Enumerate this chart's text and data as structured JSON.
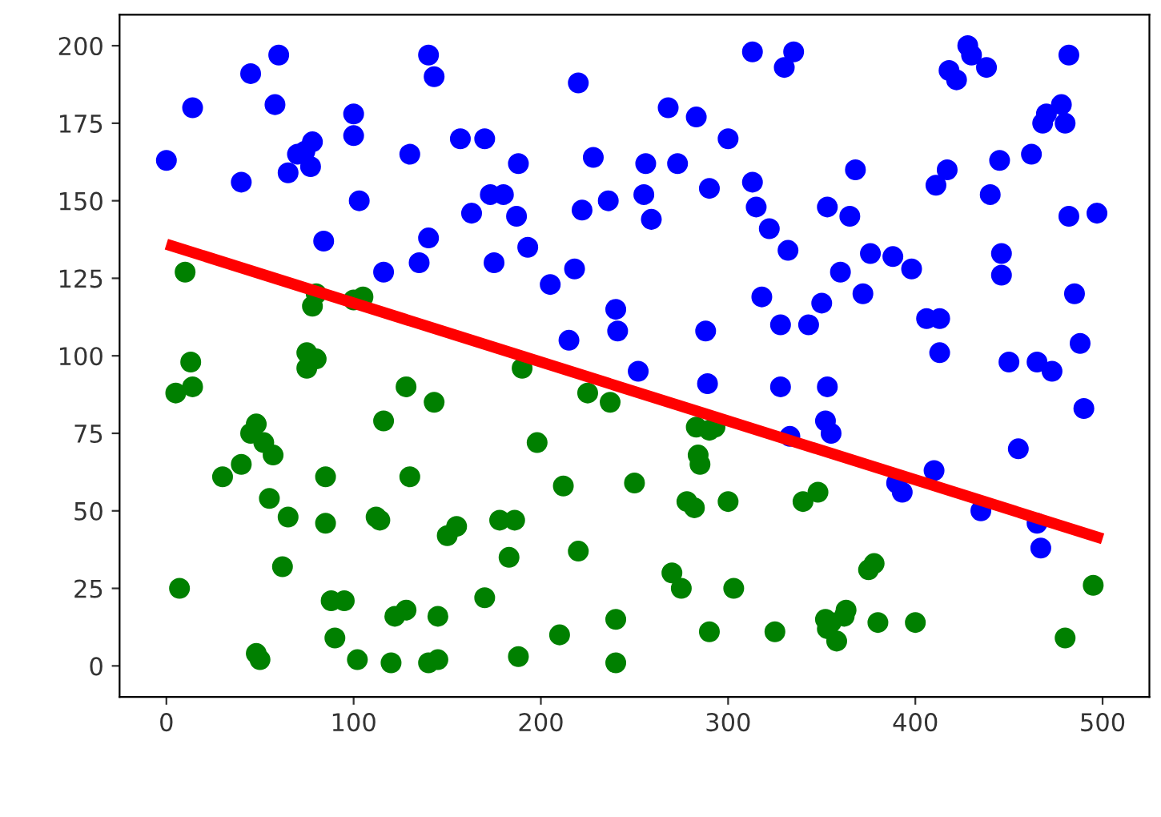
{
  "chart_data": {
    "type": "scatter",
    "xlim": [
      -25,
      525
    ],
    "ylim": [
      -10,
      210
    ],
    "xticks": [
      0,
      100,
      200,
      300,
      400,
      500
    ],
    "yticks": [
      0,
      25,
      50,
      75,
      100,
      125,
      150,
      175,
      200
    ],
    "grid": false,
    "marker": "circle",
    "series": [
      {
        "color": "#0000ff",
        "x": [
          0,
          14,
          40,
          45,
          58,
          60,
          65,
          70,
          74,
          77,
          78,
          84,
          100,
          100,
          103,
          116,
          130,
          135,
          140,
          140,
          143,
          157,
          163,
          170,
          173,
          175,
          180,
          187,
          188,
          193,
          205,
          215,
          218,
          220,
          222,
          228,
          236,
          240,
          241,
          252,
          255,
          256,
          259,
          268,
          273,
          283,
          288,
          289,
          290,
          300,
          313,
          313,
          315,
          318,
          322,
          328,
          328,
          330,
          332,
          333,
          335,
          343,
          350,
          352,
          353,
          353,
          355,
          360,
          365,
          368,
          372,
          376,
          388,
          390,
          393,
          398,
          406,
          410,
          411,
          413,
          413,
          417,
          418,
          422,
          428,
          430,
          435,
          438,
          440,
          445,
          446,
          446,
          450,
          455,
          462,
          465,
          465,
          467,
          468,
          470,
          473,
          478,
          480,
          482,
          482,
          485,
          488,
          490,
          497
        ],
        "values": [
          163,
          180,
          156,
          191,
          181,
          197,
          159,
          165,
          166,
          161,
          169,
          137,
          178,
          171,
          150,
          127,
          165,
          130,
          138,
          197,
          190,
          170,
          146,
          170,
          152,
          130,
          152,
          145,
          162,
          135,
          123,
          105,
          128,
          188,
          147,
          164,
          150,
          115,
          108,
          95,
          152,
          162,
          144,
          180,
          162,
          177,
          108,
          91,
          154,
          170,
          198,
          156,
          148,
          119,
          141,
          110,
          90,
          193,
          134,
          74,
          198,
          110,
          117,
          79,
          90,
          148,
          75,
          127,
          145,
          160,
          120,
          133,
          132,
          59,
          56,
          128,
          112,
          63,
          155,
          101,
          112,
          160,
          192,
          189,
          200,
          197,
          50,
          193,
          152,
          163,
          133,
          126,
          98,
          70,
          165,
          98,
          46,
          38,
          175,
          178,
          95,
          181,
          175,
          145,
          197,
          120,
          104,
          83,
          146
        ]
      },
      {
        "color": "#008000",
        "x": [
          5,
          7,
          10,
          13,
          14,
          30,
          40,
          45,
          48,
          48,
          50,
          52,
          55,
          57,
          62,
          65,
          75,
          75,
          78,
          80,
          80,
          85,
          85,
          88,
          90,
          95,
          100,
          102,
          105,
          112,
          114,
          116,
          120,
          122,
          128,
          128,
          130,
          140,
          143,
          145,
          145,
          150,
          155,
          170,
          178,
          183,
          186,
          188,
          190,
          198,
          210,
          212,
          220,
          225,
          237,
          240,
          240,
          250,
          270,
          275,
          278,
          282,
          283,
          284,
          285,
          290,
          290,
          293,
          300,
          303,
          325,
          340,
          348,
          352,
          353,
          355,
          358,
          362,
          363,
          375,
          378,
          380,
          400,
          480,
          495
        ],
        "values": [
          88,
          25,
          127,
          98,
          90,
          61,
          65,
          75,
          4,
          78,
          2,
          72,
          54,
          68,
          32,
          48,
          96,
          101,
          116,
          120,
          99,
          61,
          46,
          21,
          9,
          21,
          118,
          2,
          119,
          48,
          47,
          79,
          1,
          16,
          18,
          90,
          61,
          1,
          85,
          2,
          16,
          42,
          45,
          22,
          47,
          35,
          47,
          3,
          96,
          72,
          10,
          58,
          37,
          88,
          85,
          15,
          1,
          59,
          30,
          25,
          53,
          51,
          77,
          68,
          65,
          76,
          11,
          77,
          53,
          25,
          11,
          53,
          56,
          15,
          12,
          14,
          8,
          16,
          18,
          31,
          33,
          14,
          14,
          9,
          26
        ]
      },
      {
        "type": "line",
        "marker": "none",
        "color": "#ff0000",
        "x": [
          0,
          500
        ],
        "values": [
          136,
          41
        ]
      }
    ]
  }
}
